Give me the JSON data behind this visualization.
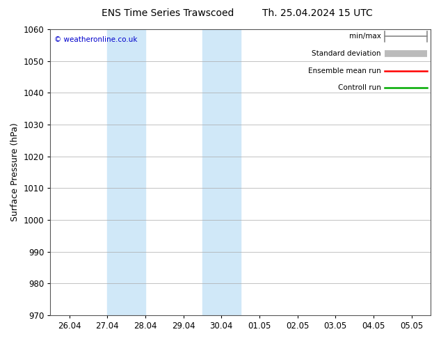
{
  "title_left": "ENS Time Series Trawscoed",
  "title_right": "Th. 25.04.2024 15 UTC",
  "ylabel": "Surface Pressure (hPa)",
  "ylim": [
    970,
    1060
  ],
  "yticks": [
    970,
    980,
    990,
    1000,
    1010,
    1020,
    1030,
    1040,
    1050,
    1060
  ],
  "x_labels": [
    "26.04",
    "27.04",
    "28.04",
    "29.04",
    "30.04",
    "01.05",
    "02.05",
    "03.05",
    "04.05",
    "05.05"
  ],
  "x_positions": [
    0,
    1,
    2,
    3,
    4,
    5,
    6,
    7,
    8,
    9
  ],
  "xlim": [
    -0.5,
    9.5
  ],
  "shaded_bands": [
    {
      "x_start": 1.0,
      "x_end": 2.0
    },
    {
      "x_start": 3.5,
      "x_end": 4.5
    }
  ],
  "shade_color": "#d0e8f8",
  "background_color": "#ffffff",
  "plot_bg_color": "#ffffff",
  "copyright_text": "© weatheronline.co.uk",
  "copyright_color": "#0000cc",
  "legend_items": [
    {
      "label": "min/max",
      "color": "#888888",
      "style": "line_with_caps"
    },
    {
      "label": "Standard deviation",
      "color": "#bbbbbb",
      "style": "thick_line"
    },
    {
      "label": "Ensemble mean run",
      "color": "#ff0000",
      "style": "line"
    },
    {
      "label": "Controll run",
      "color": "#00aa00",
      "style": "line"
    }
  ],
  "title_fontsize": 10,
  "tick_fontsize": 8.5,
  "ylabel_fontsize": 9,
  "legend_fontsize": 7.5,
  "figsize": [
    6.34,
    4.9
  ],
  "dpi": 100
}
